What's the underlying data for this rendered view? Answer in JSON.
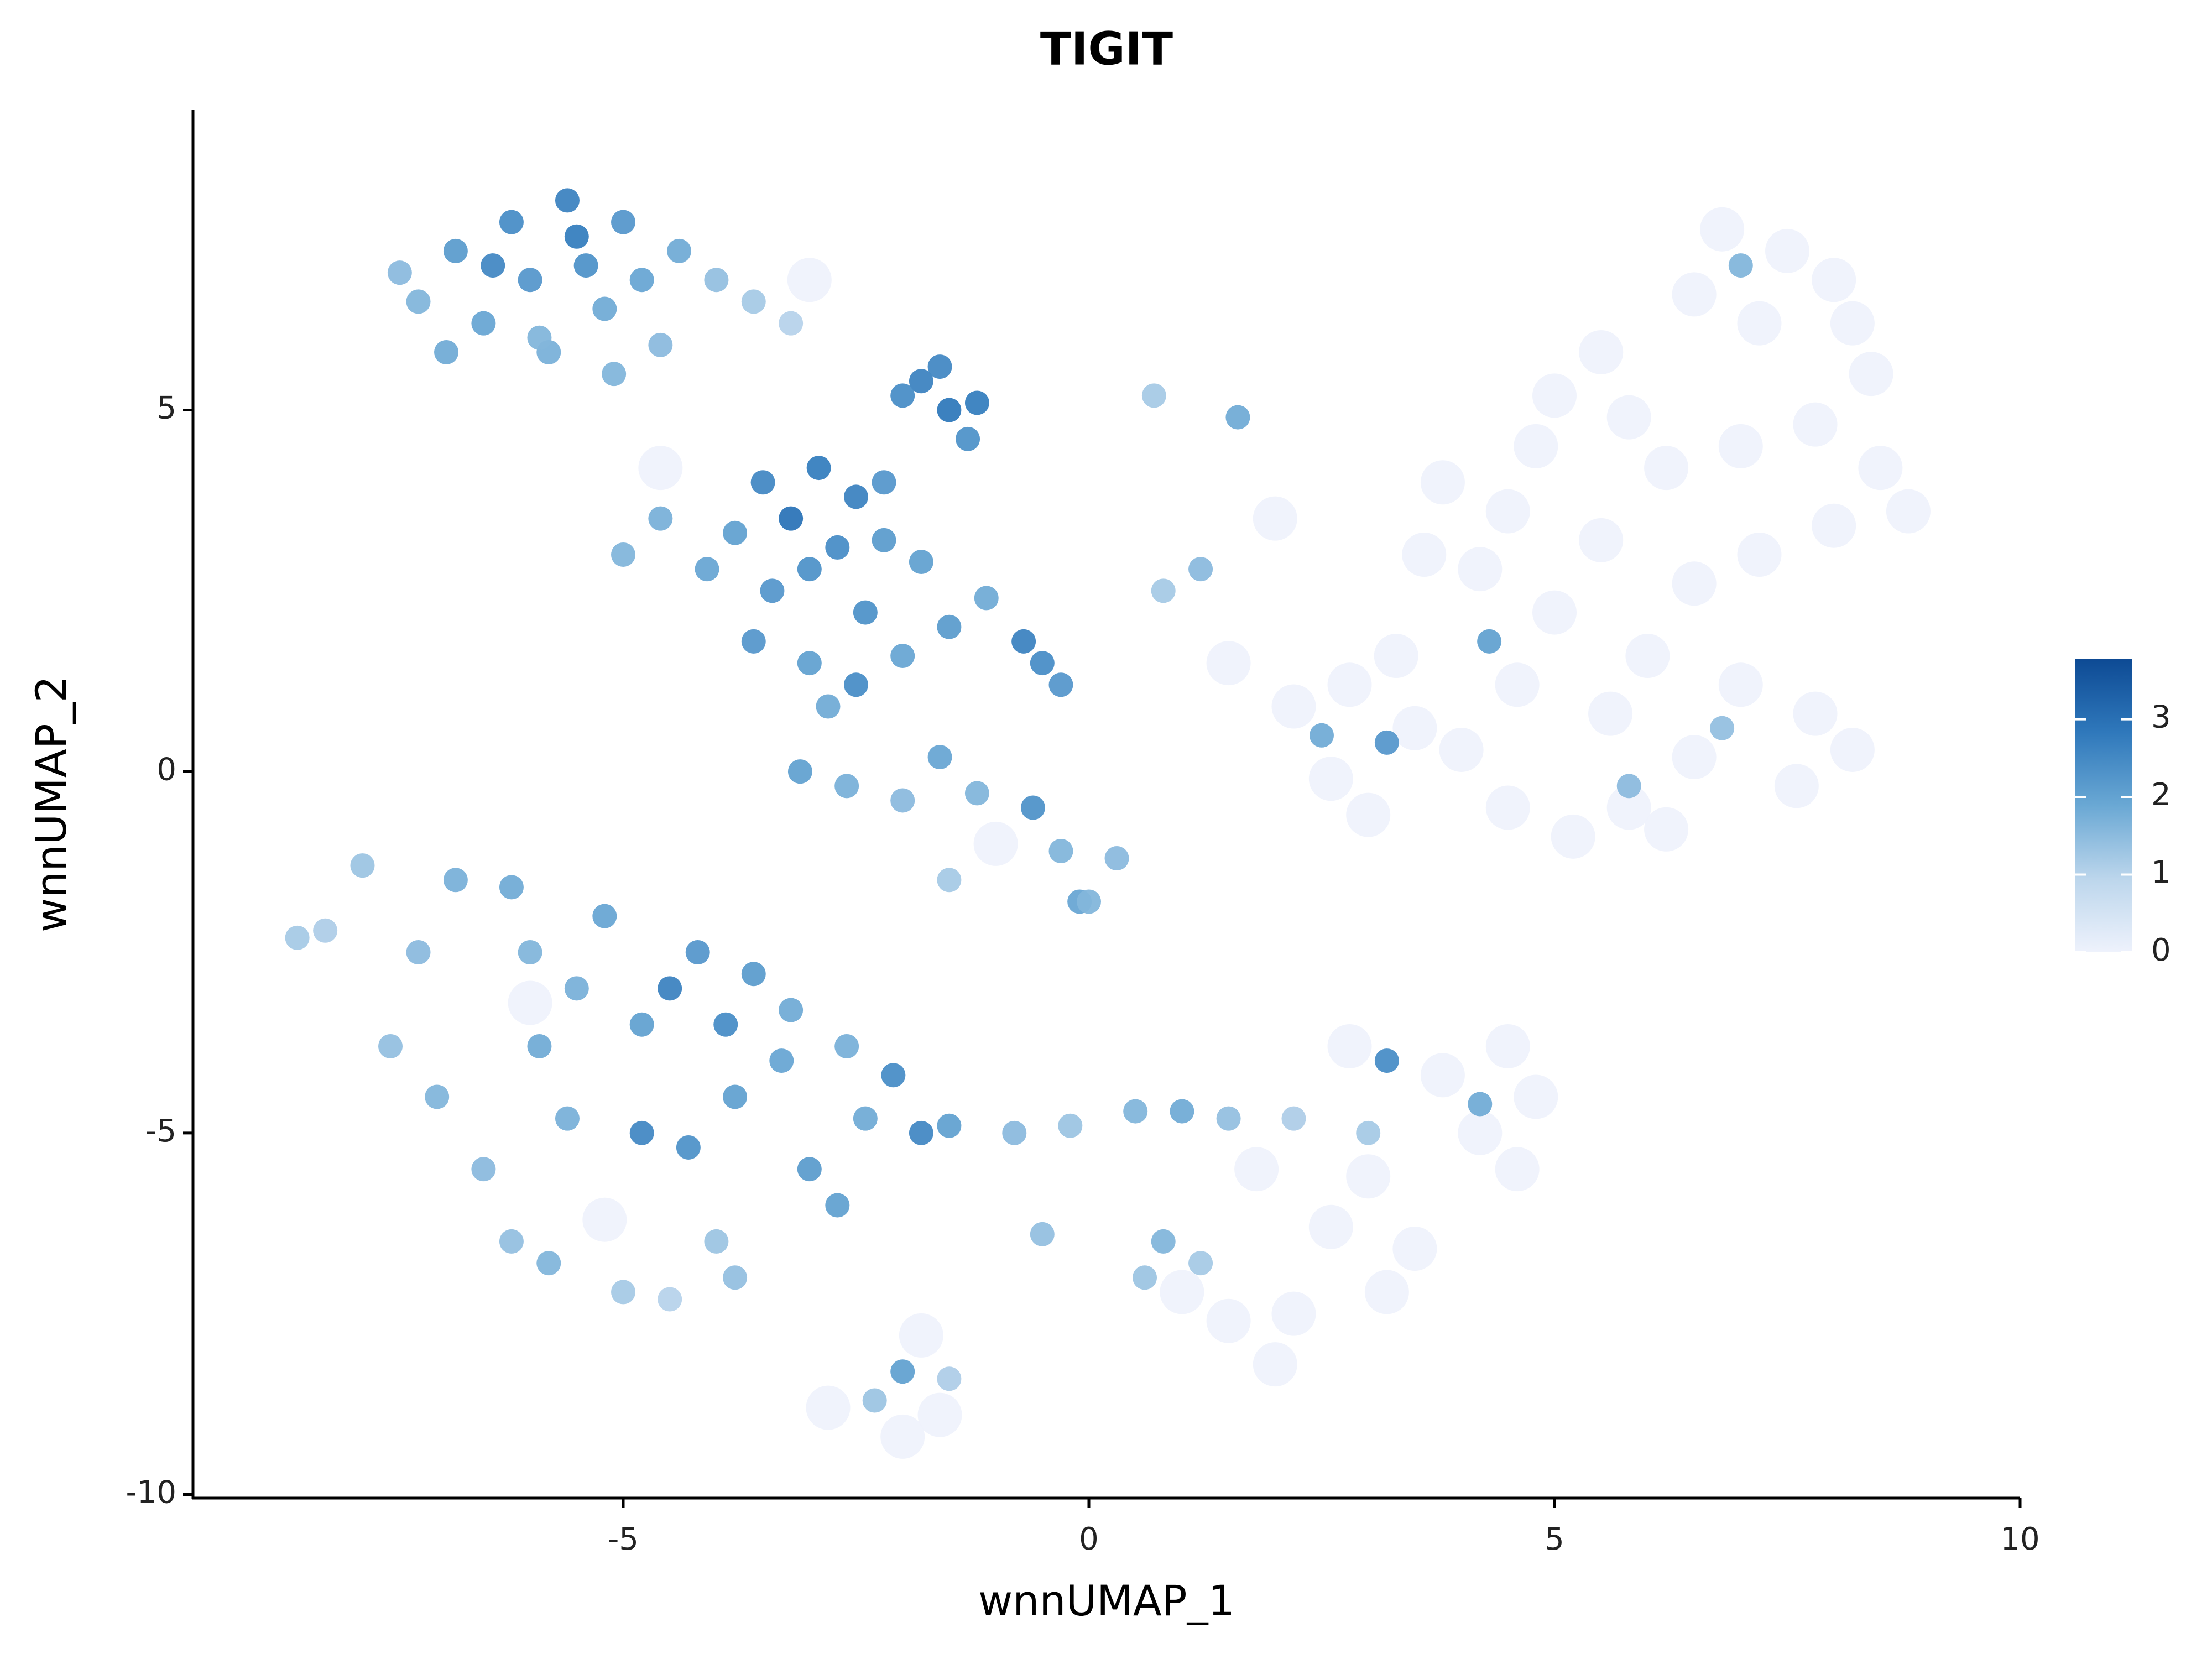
{
  "chart_data": {
    "type": "scatter",
    "title": "TIGIT",
    "x_label": "wnnUMAP_1",
    "y_label": "wnnUMAP_2",
    "xlim": [
      -9.62,
      10
    ],
    "ylim": [
      -10.05,
      9.15
    ],
    "xticks": [
      -5,
      0,
      5,
      10
    ],
    "yticks": [
      -10,
      -5,
      0,
      5
    ],
    "clim": [
      0,
      3.78
    ],
    "cticks": [
      0,
      1,
      2,
      3
    ],
    "colormap": [
      "#eef2fc",
      "#bcd6ec",
      "#6aa8d4",
      "#2f78bb",
      "#0d4a94"
    ],
    "x": [
      -7.2,
      -6.8,
      -6.5,
      -6.2,
      -6.0,
      -5.8,
      -5.6,
      -5.4,
      -5.2,
      -5.0,
      -4.8,
      -4.6,
      -6.9,
      -6.4,
      -5.9,
      -5.5,
      -4.4,
      -4.0,
      -3.6,
      -3.2,
      -5.1,
      -7.4,
      -1.8,
      -1.5,
      -1.3,
      -2.0,
      -1.6,
      -1.2,
      -3.5,
      -3.2,
      -2.9,
      -2.7,
      -2.5,
      -3.0,
      -3.4,
      -2.2,
      -1.8,
      -3.8,
      -4.1,
      -4.6,
      -5.0,
      -3.6,
      -3.0,
      -2.4,
      -2.0,
      -1.5,
      -1.1,
      -0.5,
      -0.3,
      -0.7,
      -2.8,
      -3.1,
      -2.6,
      -1.6,
      -1.2,
      -0.6,
      -2.0,
      -1.5,
      -0.3,
      -0.1,
      -2.2,
      -2.5,
      -7.8,
      -7.2,
      -6.8,
      -6.2,
      -7.5,
      -7.0,
      -6.5,
      -6.2,
      -5.8,
      -5.5,
      -5.2,
      -4.8,
      -4.5,
      -4.2,
      -3.9,
      -3.6,
      -4.8,
      -4.3,
      -3.8,
      -3.3,
      -3.0,
      -2.7,
      -2.4,
      -2.1,
      -1.8,
      -1.5,
      -5.9,
      -6.0,
      -5.6,
      -4.0,
      -5.0,
      -4.5,
      -3.8,
      -8.5,
      -8.2,
      -3.2,
      -2.6,
      -0.8,
      -0.2,
      0.5,
      1.0,
      1.5,
      2.2,
      -0.5,
      0.8,
      1.2,
      0.6,
      3.0,
      4.2,
      3.2,
      0.7,
      1.6,
      0.3,
      0.0,
      1.2,
      0.8,
      -2.3,
      -1.5,
      -2.0,
      6.8,
      7.5,
      8.0,
      6.5,
      7.2,
      8.2,
      5.5,
      5.0,
      5.8,
      4.8,
      6.2,
      7.0,
      7.8,
      8.5,
      8.8,
      8.0,
      7.2,
      6.5,
      5.5,
      4.5,
      3.8,
      4.2,
      5.0,
      6.0,
      7.0,
      7.8,
      8.2,
      7.6,
      6.5,
      5.8,
      5.2,
      4.5,
      4.0,
      3.5,
      2.8,
      3.3,
      2.6,
      3.0,
      2.2,
      1.5,
      6.2,
      8.4,
      4.6,
      5.6,
      3.6,
      2.0,
      4.5,
      4.8,
      4.2,
      4.6,
      3.8,
      3.5,
      3.2,
      2.6,
      2.2,
      2.0,
      1.5,
      1.0,
      3.0,
      2.8,
      1.8,
      -2.8,
      -1.6,
      -2.0,
      -1.8,
      -3.0,
      -6.0,
      -5.2,
      -4.6,
      -1.0,
      4.3,
      3.2,
      5.8,
      7.0,
      2.5,
      6.8
    ],
    "y": [
      6.5,
      7.2,
      6.2,
      7.6,
      6.8,
      5.8,
      7.9,
      7.0,
      6.4,
      7.6,
      6.8,
      5.9,
      5.8,
      7.0,
      6.0,
      7.4,
      7.2,
      6.8,
      6.5,
      6.2,
      5.5,
      6.9,
      5.4,
      5.0,
      4.6,
      5.2,
      5.6,
      5.1,
      4.0,
      3.5,
      4.2,
      3.1,
      3.8,
      2.8,
      2.5,
      3.2,
      2.9,
      3.3,
      2.8,
      3.5,
      3.0,
      1.8,
      1.5,
      2.2,
      1.6,
      2.0,
      2.4,
      1.5,
      1.2,
      1.8,
      0.9,
      0.0,
      -0.2,
      0.2,
      -0.3,
      -0.5,
      -0.4,
      -1.5,
      -1.1,
      -1.8,
      4.0,
      1.2,
      -1.3,
      -2.5,
      -1.5,
      -1.6,
      -3.8,
      -4.5,
      -5.5,
      -6.5,
      -6.8,
      -3.0,
      -2.0,
      -3.5,
      -3.0,
      -2.5,
      -3.5,
      -2.8,
      -5.0,
      -5.2,
      -4.5,
      -4.0,
      -5.5,
      -6.0,
      -4.8,
      -4.2,
      -5.0,
      -4.9,
      -3.8,
      -2.5,
      -4.8,
      -6.5,
      -7.2,
      -7.3,
      -7.0,
      -2.3,
      -2.2,
      -3.3,
      -3.8,
      -5.0,
      -4.9,
      -4.7,
      -4.7,
      -4.8,
      -4.8,
      -6.4,
      -6.5,
      -6.8,
      -7.0,
      -5.0,
      -4.6,
      -4.0,
      5.2,
      4.9,
      -1.2,
      -1.8,
      2.8,
      2.5,
      -8.7,
      -8.4,
      -8.3,
      7.5,
      7.2,
      6.8,
      6.6,
      6.2,
      6.2,
      5.8,
      5.2,
      4.9,
      4.5,
      4.2,
      4.5,
      4.8,
      4.2,
      3.6,
      3.4,
      3.0,
      2.6,
      3.2,
      3.6,
      4.0,
      2.8,
      2.2,
      1.6,
      1.2,
      0.8,
      0.3,
      -0.2,
      0.2,
      -0.5,
      -0.9,
      -0.5,
      0.3,
      0.6,
      1.2,
      1.6,
      -0.1,
      -0.6,
      0.9,
      1.5,
      -0.8,
      5.5,
      1.2,
      0.8,
      3.0,
      3.5,
      -3.8,
      -4.5,
      -5.0,
      -5.5,
      -4.2,
      -6.6,
      -7.2,
      -6.3,
      -7.5,
      -8.2,
      -7.6,
      -7.2,
      -5.6,
      -3.8,
      -5.5,
      -8.8,
      -8.9,
      -9.2,
      -7.8,
      6.8,
      -3.2,
      -6.2,
      4.2,
      -1.0,
      1.8,
      0.4,
      -0.2,
      7.0,
      0.5,
      0.6
    ],
    "values": [
      1.6,
      2.1,
      1.9,
      2.4,
      2.2,
      1.7,
      2.6,
      2.3,
      1.8,
      2.2,
      1.9,
      1.5,
      1.8,
      2.5,
      1.6,
      2.7,
      1.8,
      1.4,
      1.2,
      1.0,
      1.6,
      1.5,
      2.6,
      2.8,
      2.3,
      2.4,
      2.5,
      2.7,
      2.5,
      2.9,
      2.7,
      2.4,
      2.6,
      2.3,
      2.2,
      2.1,
      2.0,
      2.0,
      1.9,
      1.7,
      1.6,
      2.2,
      2.0,
      2.3,
      1.9,
      2.1,
      1.8,
      2.4,
      2.2,
      2.6,
      1.8,
      2.0,
      1.7,
      1.9,
      1.6,
      2.3,
      1.5,
      1.2,
      1.6,
      1.9,
      2.2,
      2.4,
      1.3,
      1.5,
      1.7,
      1.8,
      1.4,
      1.6,
      1.5,
      1.4,
      1.6,
      1.7,
      1.9,
      2.0,
      2.6,
      2.2,
      2.4,
      2.1,
      2.5,
      2.3,
      2.0,
      1.9,
      2.1,
      2.0,
      1.8,
      2.4,
      2.5,
      2.0,
      1.8,
      1.6,
      1.7,
      1.3,
      1.2,
      1.0,
      1.4,
      1.2,
      1.1,
      1.8,
      1.7,
      1.5,
      1.3,
      1.6,
      1.8,
      1.4,
      1.1,
      1.4,
      1.6,
      1.2,
      1.3,
      1.2,
      1.8,
      2.4,
      1.2,
      1.8,
      1.5,
      1.6,
      1.5,
      1.2,
      1.3,
      1.1,
      2.0,
      0,
      0,
      0,
      0,
      0,
      0,
      0,
      0,
      0,
      0,
      0,
      0,
      0,
      0,
      0,
      0,
      0,
      0,
      0,
      0,
      0,
      0,
      0,
      0,
      0,
      0,
      0,
      0,
      0,
      0,
      0,
      0,
      0,
      0,
      0,
      0,
      0,
      0,
      0,
      0,
      0,
      0,
      0,
      0,
      0,
      0,
      0,
      0,
      0,
      0,
      0,
      0,
      0,
      0,
      0,
      0,
      0,
      0,
      0,
      0,
      0,
      0,
      0,
      0,
      0,
      0,
      0,
      0,
      0,
      0,
      2.0,
      2.2,
      1.5,
      1.6,
      1.8,
      1.4
    ]
  }
}
